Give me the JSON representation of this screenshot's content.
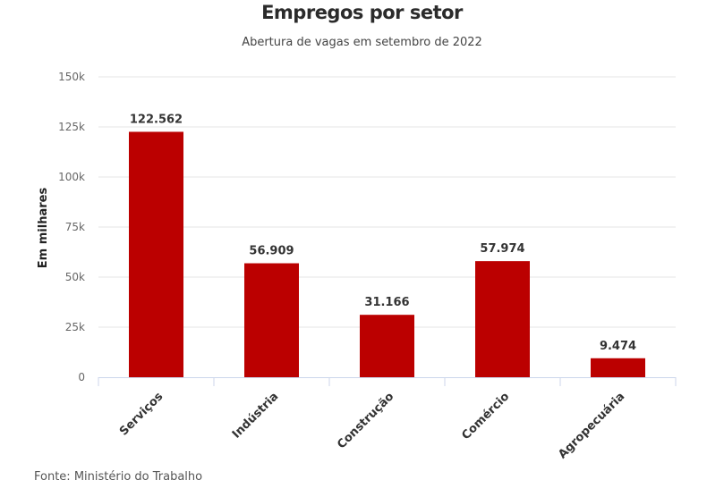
{
  "chart_data": {
    "type": "bar",
    "title": "Empregos por setor",
    "subtitle": "Abertura de vagas em setembro de 2022",
    "xlabel": "",
    "ylabel": "Em milhares",
    "categories": [
      "Serviços",
      "Indústria",
      "Construção",
      "Comércio",
      "Agropecuária"
    ],
    "values": [
      122562,
      56909,
      31166,
      57974,
      9474
    ],
    "data_labels": [
      "122.562",
      "56.909",
      "31.166",
      "57.974",
      "9.474"
    ],
    "ylim": [
      0,
      150000
    ],
    "yticks": [
      0,
      25000,
      50000,
      75000,
      100000,
      125000,
      150000
    ],
    "ytick_labels": [
      "0",
      "25k",
      "50k",
      "75k",
      "100k",
      "125k",
      "150k"
    ],
    "grid": true,
    "legend": "none",
    "bar_color": "#bb0000",
    "source": "Fonte: Ministério do Trabalho"
  }
}
